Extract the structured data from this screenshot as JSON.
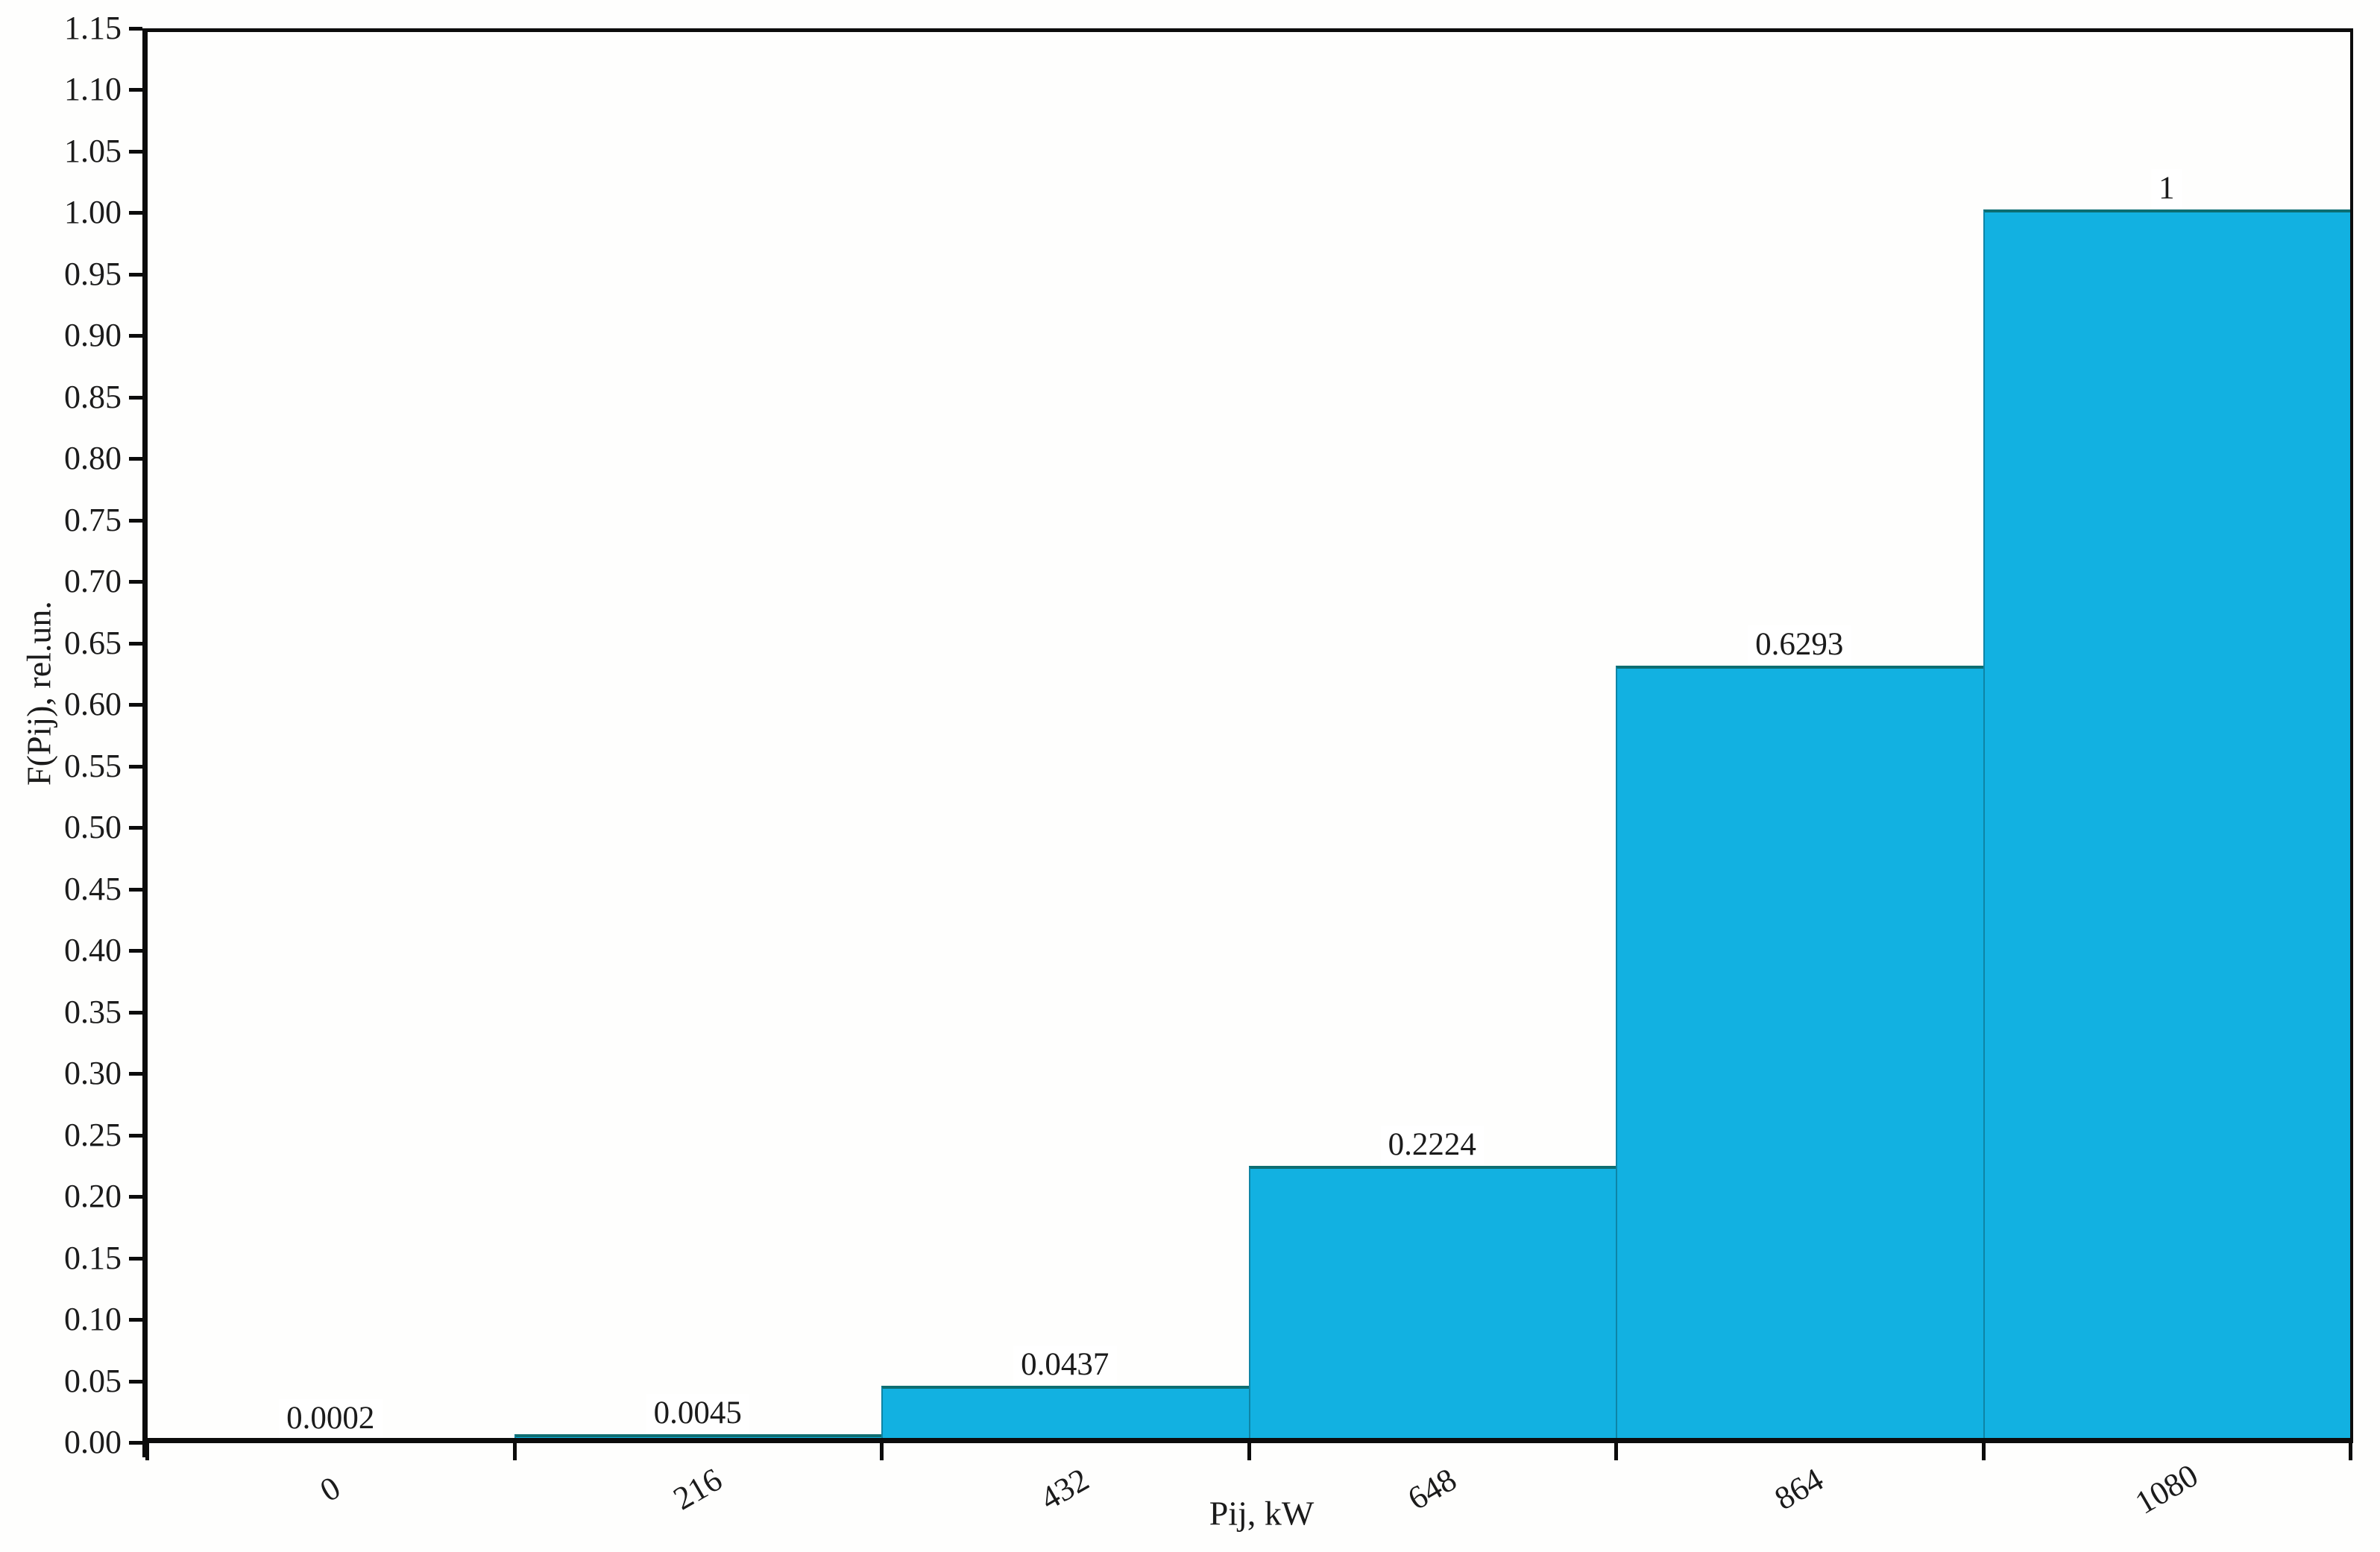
{
  "chart_data": {
    "type": "bar",
    "title": "",
    "categories": [
      "0",
      "216",
      "432",
      "648",
      "864",
      "1080"
    ],
    "values": [
      0.0002,
      0.0045,
      0.0437,
      0.2224,
      0.6293,
      1
    ],
    "bar_labels": [
      "0.0002",
      "0.0045",
      "0.0437",
      "0.2224",
      "0.6293",
      "1"
    ],
    "xlabel": "Pij, kW",
    "ylabel": "F(Pij), rel.un.",
    "ylim": [
      0,
      1.15
    ],
    "y_ticks": [
      "0.00",
      "0.05",
      "0.10",
      "0.15",
      "0.20",
      "0.25",
      "0.30",
      "0.35",
      "0.40",
      "0.45",
      "0.50",
      "0.55",
      "0.60",
      "0.65",
      "0.70",
      "0.75",
      "0.80",
      "0.85",
      "0.90",
      "0.95",
      "1.00",
      "1.05",
      "1.10",
      "1.15"
    ],
    "grid": "off",
    "legend": "none",
    "bar_color": "#12b1e1",
    "bar_edge_color": "#0d6e72",
    "axis_color": "#0c0c0c",
    "background_color": "#fefefd"
  }
}
